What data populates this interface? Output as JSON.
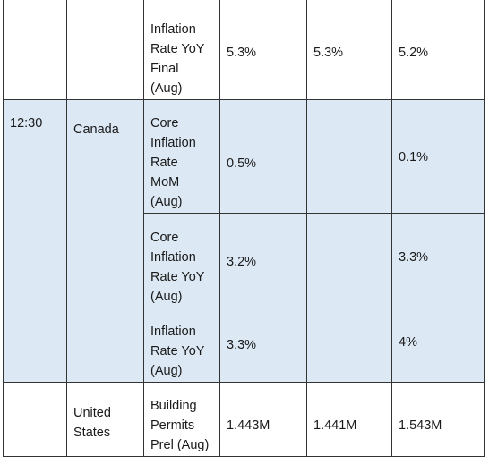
{
  "colors": {
    "highlight": "#dce8f4",
    "border": "#333333",
    "text": "#1a1a1a"
  },
  "rows": [
    {
      "time": "",
      "country": [
        "",
        ""
      ],
      "event": [
        "Inflation",
        "Rate YoY",
        "Final",
        "(Aug)"
      ],
      "actual": "5.3%",
      "previous": "5.3%",
      "consensus": "5.2%",
      "highlight": false
    },
    {
      "time": "12:30",
      "country": [
        "Canada",
        ""
      ],
      "event": [
        "Core",
        "Inflation",
        "Rate",
        "MoM",
        "(Aug)"
      ],
      "actual": "0.5%",
      "previous": "",
      "consensus": "0.1%",
      "highlight": true
    },
    {
      "time": "",
      "country": [
        "",
        ""
      ],
      "event": [
        "Core",
        "Inflation",
        "Rate YoY",
        "(Aug)"
      ],
      "actual": "3.2%",
      "previous": "",
      "consensus": "3.3%",
      "highlight": true
    },
    {
      "time": "",
      "country": [
        "",
        ""
      ],
      "event": [
        "Inflation",
        "Rate YoY",
        "(Aug)"
      ],
      "actual": "3.3%",
      "previous": "",
      "consensus": "4%",
      "highlight": true
    },
    {
      "time": "",
      "country": [
        "United",
        "States"
      ],
      "event": [
        "Building",
        "Permits",
        "Prel (Aug)"
      ],
      "actual": "1.443M",
      "previous": "1.441M",
      "consensus": "1.543M",
      "highlight": false
    }
  ]
}
